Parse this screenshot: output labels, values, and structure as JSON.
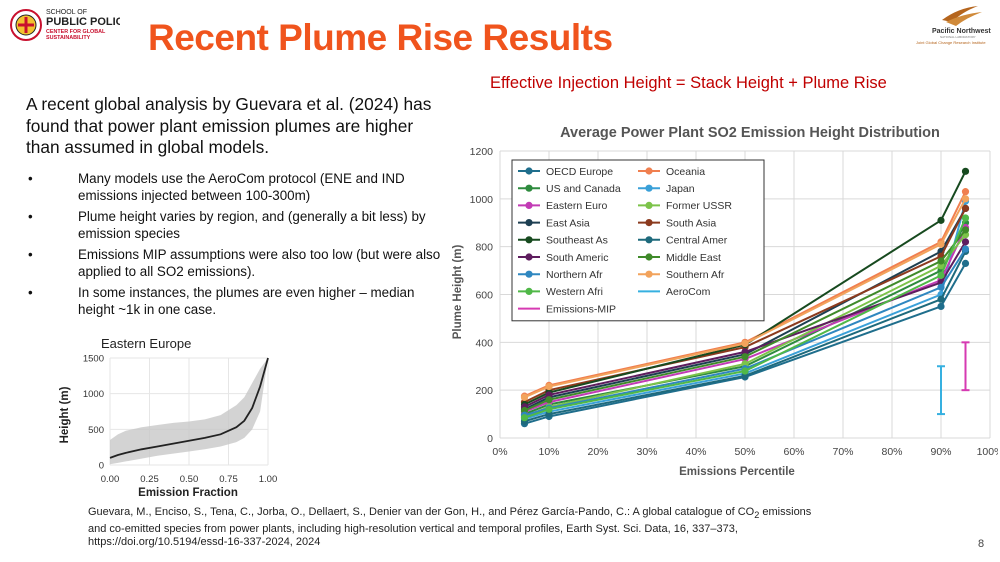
{
  "header": {
    "title": "Recent Plume Rise Results",
    "logo_left": {
      "lines": [
        "SCHOOL OF",
        "PUBLIC POLICY",
        "CENTER FOR GLOBAL",
        "SUSTAINABILITY"
      ],
      "accent": "#c8102e",
      "icon": "university-seal-icon"
    },
    "logo_right": {
      "lines": [
        "Pacific Northwest",
        "NATIONAL LABORATORY",
        "Joint Global Change Research Institute"
      ],
      "accent": "#b5651d",
      "icon": "pnnl-swoosh-icon"
    }
  },
  "subtitle": "Effective Injection Height = Stack Height + Plume Rise",
  "intro": "A recent global analysis by Guevara et al. (2024) has found that power plant emission plumes are higher than assumed in global models.",
  "bullets": [
    "Many models use the AeroCom protocol (ENE and IND emissions injected between 100-300m)",
    "Plume height varies by region, and (generally a bit less) by emission species",
    "Emissions MIP assumptions were also too low (but were also applied to all SO2 emissions).",
    "In some instances, the plumes are even higher – median height ~1k in one case."
  ],
  "bullet_glyph": "•",
  "citation": {
    "line1_before": "Guevara, M., Enciso, S., Tena, C., Jorba, O., Dellaert, S., Denier van der Gon, H., and Pérez García-Pando, C.: A global catalogue of CO",
    "sub": "2",
    "line1_after": " emissions",
    "line2": "and co-emitted species from power plants, including high-resolution vertical and temporal profiles, Earth Syst. Sci. Data, 16, 337–373,",
    "line3": "https://doi.org/10.5194/essd-16-337-2024, 2024"
  },
  "page_number": "8",
  "chart_data": [
    {
      "type": "line",
      "title": "Eastern Europe",
      "xlabel": "Emission Fraction",
      "ylabel": "Height (m)",
      "xlim": [
        0,
        1
      ],
      "ylim": [
        0,
        1500
      ],
      "xticks": [
        0.0,
        0.25,
        0.5,
        0.75,
        1.0
      ],
      "xtick_labels": [
        "0.00",
        "0.25",
        "0.50",
        "0.75",
        "1.00"
      ],
      "yticks": [
        0,
        500,
        1000,
        1500
      ],
      "ytick_labels": [
        "0",
        "500",
        "1000",
        "1500"
      ],
      "grid": true,
      "line_color": "#222222",
      "band_color": "#c8c8c8",
      "x": [
        0.0,
        0.05,
        0.1,
        0.2,
        0.3,
        0.4,
        0.5,
        0.6,
        0.7,
        0.8,
        0.85,
        0.9,
        0.95,
        1.0
      ],
      "y": [
        100,
        140,
        170,
        220,
        260,
        300,
        340,
        380,
        430,
        530,
        620,
        800,
        1100,
        1500
      ],
      "lower": [
        10,
        30,
        50,
        90,
        130,
        160,
        190,
        220,
        260,
        320,
        380,
        500,
        750,
        1500
      ],
      "upper": [
        350,
        430,
        480,
        530,
        560,
        590,
        610,
        640,
        700,
        840,
        950,
        1150,
        1350,
        1500
      ]
    },
    {
      "type": "line",
      "title": "Average Power Plant SO2 Emission Height Distribution",
      "xlabel": "Emissions Percentile",
      "ylabel": "Plume Height (m)",
      "xlim": [
        0,
        100
      ],
      "ylim": [
        0,
        1200
      ],
      "xticks": [
        0,
        10,
        20,
        30,
        40,
        50,
        60,
        70,
        80,
        90,
        100
      ],
      "xtick_labels": [
        "0%",
        "10%",
        "20%",
        "30%",
        "40%",
        "50%",
        "60%",
        "70%",
        "80%",
        "90%",
        "100%"
      ],
      "yticks": [
        0,
        200,
        400,
        600,
        800,
        1000,
        1200
      ],
      "ytick_labels": [
        "0",
        "200",
        "400",
        "600",
        "800",
        "1000",
        "1200"
      ],
      "grid": true,
      "legend_placement": "top-left",
      "x": [
        5,
        10,
        50,
        90,
        95
      ],
      "series": [
        {
          "name": "OECD Europe",
          "color": "#1f6e8c",
          "values": [
            60,
            90,
            255,
            550,
            730
          ]
        },
        {
          "name": "Oceania",
          "color": "#f07f4f",
          "values": [
            175,
            220,
            400,
            820,
            1030
          ]
        },
        {
          "name": "US and Canada",
          "color": "#2e8b3e",
          "values": [
            100,
            140,
            300,
            700,
            900
          ]
        },
        {
          "name": "Japan",
          "color": "#3aa0d8",
          "values": [
            80,
            110,
            270,
            600,
            990
          ]
        },
        {
          "name": "Eastern Euro",
          "color": "#c23bb5",
          "values": [
            110,
            150,
            330,
            660,
            880
          ]
        },
        {
          "name": "Former USSR",
          "color": "#7cc34a",
          "values": [
            90,
            130,
            310,
            720,
            850
          ]
        },
        {
          "name": "East Asia",
          "color": "#1d3f52",
          "values": [
            120,
            170,
            350,
            780,
            960
          ]
        },
        {
          "name": "South Asia",
          "color": "#8b3a1e",
          "values": [
            150,
            200,
            380,
            760,
            960
          ]
        },
        {
          "name": "Southeast As",
          "color": "#174a1f",
          "values": [
            140,
            190,
            390,
            910,
            1115
          ]
        },
        {
          "name": "Central Amer",
          "color": "#1e6a7c",
          "values": [
            70,
            100,
            260,
            580,
            780
          ]
        },
        {
          "name": "South Americ",
          "color": "#5e1d5e",
          "values": [
            130,
            180,
            360,
            650,
            820
          ]
        },
        {
          "name": "Middle East",
          "color": "#3f8a2a",
          "values": [
            115,
            160,
            340,
            740,
            870
          ]
        },
        {
          "name": "Northern Afr",
          "color": "#2f87c0",
          "values": [
            95,
            125,
            290,
            630,
            790
          ]
        },
        {
          "name": "Southern Afr",
          "color": "#f2a35c",
          "values": [
            170,
            215,
            395,
            810,
            1000
          ]
        },
        {
          "name": "Western Afri",
          "color": "#50b848",
          "values": [
            85,
            120,
            280,
            680,
            920
          ]
        }
      ],
      "ranges": [
        {
          "name": "AeroCom",
          "color": "#36b0e0",
          "x": 90,
          "low": 100,
          "high": 300
        },
        {
          "name": "Emissions-MIP",
          "color": "#d63ab2",
          "x": 95,
          "low": 200,
          "high": 400
        }
      ]
    }
  ]
}
